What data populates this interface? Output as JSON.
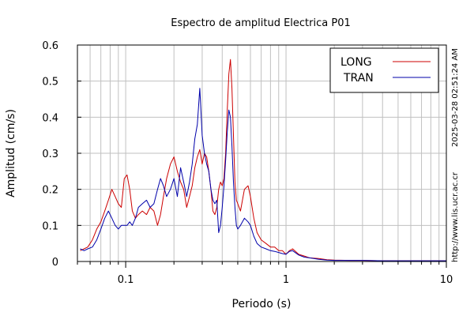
{
  "chart_data": {
    "type": "line",
    "title": "Espectro de amplitud Electrica P01",
    "xlabel": "Periodo (s)",
    "ylabel": "Amplitud (cm/s)",
    "xscale": "log",
    "xlim": [
      0.05,
      10
    ],
    "ylim": [
      0,
      0.6
    ],
    "yticks": [
      0,
      0.1,
      0.2,
      0.3,
      0.4,
      0.5,
      0.6
    ],
    "ytick_labels": [
      "0",
      "0.1",
      "0.2",
      "0.3",
      "0.4",
      "0.5",
      "0.6"
    ],
    "xticks": [
      0.1,
      1,
      10
    ],
    "xtick_labels": [
      "0.1",
      "1",
      "10"
    ],
    "grid": true,
    "legend": "top-right",
    "series": [
      {
        "name": "LONG",
        "color": "#cc0000",
        "x": [
          0.052,
          0.055,
          0.058,
          0.062,
          0.066,
          0.07,
          0.074,
          0.078,
          0.082,
          0.086,
          0.09,
          0.094,
          0.098,
          0.102,
          0.106,
          0.11,
          0.115,
          0.12,
          0.127,
          0.135,
          0.142,
          0.15,
          0.158,
          0.165,
          0.172,
          0.18,
          0.19,
          0.2,
          0.21,
          0.22,
          0.23,
          0.24,
          0.25,
          0.26,
          0.27,
          0.28,
          0.29,
          0.3,
          0.31,
          0.32,
          0.33,
          0.34,
          0.35,
          0.36,
          0.37,
          0.38,
          0.39,
          0.4,
          0.41,
          0.42,
          0.43,
          0.44,
          0.45,
          0.46,
          0.47,
          0.48,
          0.49,
          0.5,
          0.52,
          0.55,
          0.58,
          0.6,
          0.63,
          0.66,
          0.7,
          0.75,
          0.8,
          0.85,
          0.9,
          0.95,
          1.0,
          1.05,
          1.1,
          1.2,
          1.3,
          1.4,
          1.6,
          1.8,
          2.0,
          2.5,
          3.0,
          4.0,
          5.0,
          6.0,
          8.0,
          10.0
        ],
        "y": [
          0.03,
          0.035,
          0.04,
          0.06,
          0.09,
          0.11,
          0.14,
          0.17,
          0.2,
          0.18,
          0.16,
          0.15,
          0.23,
          0.24,
          0.2,
          0.14,
          0.12,
          0.13,
          0.14,
          0.13,
          0.15,
          0.14,
          0.1,
          0.13,
          0.18,
          0.23,
          0.27,
          0.29,
          0.25,
          0.22,
          0.2,
          0.15,
          0.18,
          0.21,
          0.26,
          0.29,
          0.31,
          0.27,
          0.3,
          0.29,
          0.25,
          0.2,
          0.14,
          0.13,
          0.15,
          0.2,
          0.22,
          0.21,
          0.23,
          0.3,
          0.42,
          0.52,
          0.56,
          0.48,
          0.35,
          0.22,
          0.17,
          0.16,
          0.14,
          0.2,
          0.21,
          0.18,
          0.12,
          0.08,
          0.06,
          0.05,
          0.04,
          0.04,
          0.03,
          0.03,
          0.02,
          0.03,
          0.035,
          0.02,
          0.015,
          0.01,
          0.008,
          0.005,
          0.004,
          0.003,
          0.003,
          0.002,
          0.002,
          0.002,
          0.002,
          0.002
        ]
      },
      {
        "name": "TRAN",
        "color": "#0000aa",
        "x": [
          0.052,
          0.055,
          0.058,
          0.062,
          0.066,
          0.07,
          0.074,
          0.078,
          0.082,
          0.086,
          0.09,
          0.094,
          0.098,
          0.102,
          0.106,
          0.11,
          0.115,
          0.12,
          0.127,
          0.135,
          0.142,
          0.15,
          0.158,
          0.165,
          0.172,
          0.18,
          0.19,
          0.2,
          0.21,
          0.22,
          0.23,
          0.24,
          0.25,
          0.26,
          0.27,
          0.28,
          0.29,
          0.3,
          0.31,
          0.32,
          0.33,
          0.34,
          0.35,
          0.36,
          0.37,
          0.38,
          0.39,
          0.4,
          0.41,
          0.42,
          0.43,
          0.44,
          0.45,
          0.46,
          0.47,
          0.48,
          0.49,
          0.5,
          0.52,
          0.55,
          0.58,
          0.6,
          0.63,
          0.66,
          0.7,
          0.75,
          0.8,
          0.85,
          0.9,
          0.95,
          1.0,
          1.05,
          1.1,
          1.2,
          1.3,
          1.4,
          1.6,
          1.8,
          2.0,
          2.5,
          3.0,
          4.0,
          5.0,
          6.0,
          8.0,
          10.0
        ],
        "y": [
          0.035,
          0.03,
          0.035,
          0.04,
          0.06,
          0.09,
          0.12,
          0.14,
          0.12,
          0.1,
          0.09,
          0.1,
          0.1,
          0.1,
          0.11,
          0.1,
          0.12,
          0.15,
          0.16,
          0.17,
          0.15,
          0.16,
          0.2,
          0.23,
          0.21,
          0.18,
          0.2,
          0.23,
          0.18,
          0.26,
          0.22,
          0.18,
          0.22,
          0.27,
          0.34,
          0.38,
          0.48,
          0.35,
          0.3,
          0.27,
          0.25,
          0.2,
          0.17,
          0.16,
          0.17,
          0.08,
          0.1,
          0.15,
          0.21,
          0.28,
          0.36,
          0.42,
          0.4,
          0.32,
          0.22,
          0.15,
          0.1,
          0.09,
          0.1,
          0.12,
          0.11,
          0.1,
          0.07,
          0.05,
          0.04,
          0.035,
          0.03,
          0.028,
          0.025,
          0.022,
          0.02,
          0.028,
          0.03,
          0.018,
          0.012,
          0.01,
          0.006,
          0.004,
          0.003,
          0.003,
          0.003,
          0.002,
          0.002,
          0.002,
          0.002,
          0.002
        ]
      }
    ]
  },
  "side_text": {
    "timestamp": "2025-03-28 02:51:24 AM",
    "url": "http://www.lis.ucr.ac.cr"
  }
}
